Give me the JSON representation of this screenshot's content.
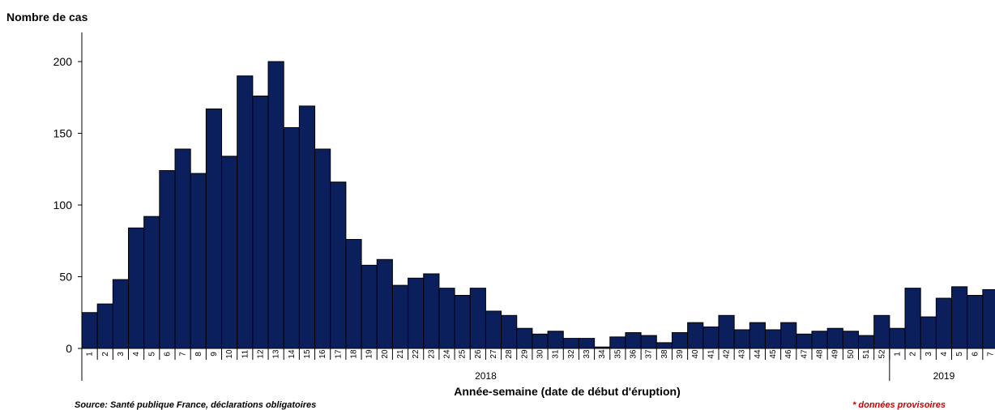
{
  "chart_data": {
    "type": "bar",
    "ylabel": "Nombre de cas",
    "xlabel": "Année-semaine (date de début d'éruption)",
    "ylim": [
      0,
      200
    ],
    "yticks": [
      0,
      50,
      100,
      150,
      200
    ],
    "grid": false,
    "bar_color": "#0b1f5c",
    "years": [
      {
        "label": "2018",
        "weeks": 52
      },
      {
        "label": "2019",
        "weeks": 7
      }
    ],
    "categories": [
      "1",
      "2",
      "3",
      "4",
      "5",
      "6",
      "7",
      "8",
      "9",
      "10",
      "11",
      "12",
      "13",
      "14",
      "15",
      "16",
      "17",
      "18",
      "19",
      "20",
      "21",
      "22",
      "23",
      "24",
      "25",
      "26",
      "27",
      "28",
      "29",
      "30",
      "31",
      "32",
      "33",
      "34",
      "35",
      "36",
      "37",
      "38",
      "39",
      "40",
      "41",
      "42",
      "43",
      "44",
      "45",
      "46",
      "47",
      "48",
      "49",
      "50",
      "51",
      "52",
      "1",
      "2",
      "3",
      "4",
      "5",
      "6",
      "7"
    ],
    "values": [
      25,
      31,
      48,
      84,
      92,
      124,
      139,
      122,
      167,
      134,
      190,
      176,
      200,
      154,
      169,
      139,
      116,
      76,
      58,
      62,
      44,
      49,
      52,
      42,
      37,
      42,
      26,
      23,
      14,
      10,
      12,
      7,
      7,
      1,
      8,
      11,
      9,
      4,
      11,
      18,
      15,
      23,
      13,
      18,
      13,
      18,
      10,
      12,
      14,
      12,
      9,
      23,
      14,
      42,
      22,
      35,
      43,
      37,
      41
    ]
  },
  "footer": {
    "source": "Source: Santé publique France, déclarations obligatoires",
    "note": "* données provisoires",
    "note_color": "#cc0000"
  }
}
